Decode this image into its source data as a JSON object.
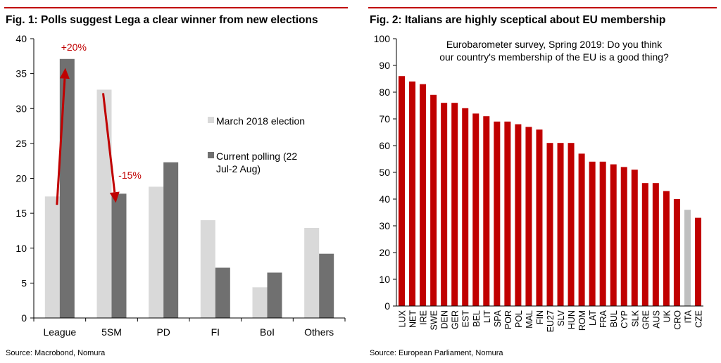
{
  "charts": [
    {
      "title": "Fig. 1: Polls suggest Lega a clear winner from new elections",
      "source": "Source: Macrobond, Nomura",
      "chart_data": {
        "type": "bar",
        "categories": [
          "League",
          "5SM",
          "PD",
          "FI",
          "BoI",
          "Others"
        ],
        "series": [
          {
            "name": "March 2018 election",
            "values": [
              17.4,
              32.7,
              18.8,
              14.0,
              4.4,
              12.9
            ],
            "color": "#d9d9d9"
          },
          {
            "name": "Current polling (22 Jul-2 Aug)",
            "values": [
              37.1,
              17.8,
              22.3,
              7.2,
              6.5,
              9.2
            ],
            "color": "#707070"
          }
        ],
        "ylim": [
          0,
          40
        ],
        "yticks": [
          0,
          5,
          10,
          15,
          20,
          25,
          30,
          35,
          40
        ],
        "legend_position": "right",
        "annotations": [
          {
            "text": "+20%",
            "color": "#c00000"
          },
          {
            "text": "-15%",
            "color": "#c00000"
          }
        ]
      }
    },
    {
      "title": "Fig. 2: Italians are highly sceptical about EU membership",
      "source": "Source: European Parliament, Nomura",
      "chart_data": {
        "type": "bar",
        "annotation_lines": [
          "Eurobarometer survey, Spring 2019: Do you think",
          "our country's membership of the EU is a good thing?"
        ],
        "categories": [
          "LUX",
          "NET",
          "IRE",
          "SWE",
          "DEN",
          "GER",
          "EST",
          "BEL",
          "LIT",
          "SPA",
          "POR",
          "POL",
          "MAL",
          "FIN",
          "EU27",
          "SLV",
          "HUN",
          "ROM",
          "LAT",
          "FRA",
          "BUL",
          "CYP",
          "SLK",
          "GRE",
          "AUS",
          "UK",
          "CRO",
          "ITA",
          "CZE"
        ],
        "values": [
          86,
          84,
          83,
          79,
          76,
          76,
          74,
          72,
          71,
          69,
          69,
          68,
          67,
          66,
          61,
          61,
          61,
          57,
          54,
          54,
          53,
          52,
          51,
          46,
          46,
          43,
          40,
          36,
          33
        ],
        "bar_color": "#c00000",
        "highlight": {
          "category": "ITA",
          "color": "#bfbfbf"
        },
        "ylim": [
          0,
          100
        ],
        "yticks": [
          0,
          10,
          20,
          30,
          40,
          50,
          60,
          70,
          80,
          90,
          100
        ]
      }
    }
  ]
}
